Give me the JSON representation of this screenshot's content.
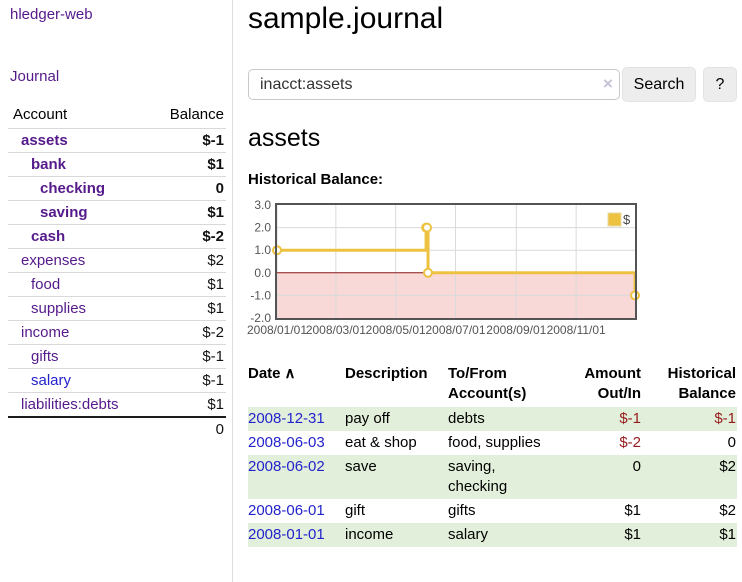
{
  "sidebar": {
    "app_title": "hledger-web",
    "journal_link": "Journal",
    "accounts_table": {
      "headers": {
        "account": "Account",
        "balance": "Balance"
      },
      "rows": [
        {
          "name": "assets",
          "balance": "$-1"
        },
        {
          "name": "bank",
          "balance": "$1"
        },
        {
          "name": "checking",
          "balance": "0"
        },
        {
          "name": "saving",
          "balance": "$1"
        },
        {
          "name": "cash",
          "balance": "$-2"
        },
        {
          "name": "expenses",
          "balance": "$2"
        },
        {
          "name": "food",
          "balance": "$1"
        },
        {
          "name": "supplies",
          "balance": "$1"
        },
        {
          "name": "income",
          "balance": "$-2"
        },
        {
          "name": "gifts",
          "balance": "$-1"
        },
        {
          "name": "salary",
          "balance": "$-1"
        },
        {
          "name": "liabilities:debts",
          "balance": "$1"
        }
      ],
      "total": "0"
    }
  },
  "header": {
    "title": "sample.journal"
  },
  "search": {
    "value": "inacct:assets",
    "clear_icon": "×",
    "button_label": "Search",
    "help_label": "?"
  },
  "main": {
    "account_heading": "assets",
    "chart_label": "Historical Balance:"
  },
  "chart_data": {
    "type": "step-line",
    "title": "Historical Balance",
    "series": [
      {
        "name": "$",
        "x": [
          "2008-01-01",
          "2008-06-01",
          "2008-06-02",
          "2008-06-03",
          "2008-12-31"
        ],
        "values": [
          1,
          2,
          2,
          0,
          -1
        ]
      }
    ],
    "x_range": [
      "2008-01-01",
      "2008-12-31"
    ],
    "ylim": [
      -2,
      3
    ],
    "x_ticks": [
      {
        "date": "2008-01-01",
        "label": "2008/01/01"
      },
      {
        "date": "2008-03-01",
        "label": "2008/03/01"
      },
      {
        "date": "2008-05-01",
        "label": "2008/05/01"
      },
      {
        "date": "2008-07-01",
        "label": "2008/07/01"
      },
      {
        "date": "2008-09-01",
        "label": "2008/09/01"
      },
      {
        "date": "2008-11-01",
        "label": "2008/11/01"
      }
    ],
    "y_ticks": [
      "3.0",
      "2.0",
      "1.0",
      "0.0",
      "-1.0",
      "-2.0"
    ],
    "legend": {
      "label": "$",
      "position": "top-right"
    },
    "grid": true,
    "colors": {
      "line": "#edc240",
      "marker_fill": "#ffffff",
      "negative_fill": "#f9d8d8",
      "zero_line": "#8c1717",
      "grid": "#dadada",
      "border": "#545454",
      "tick_text": "#545454"
    }
  },
  "register_table": {
    "columns": [
      {
        "label": "Date",
        "sort_icon": "∧"
      },
      {
        "label": "Description"
      },
      {
        "label": "To/From Account(s)"
      },
      {
        "label": "Amount Out/In"
      },
      {
        "label": "Historical Balance"
      }
    ],
    "rows": [
      {
        "date": "2008-12-31",
        "description": "pay off",
        "accounts": "debts",
        "amount": "$-1",
        "balance": "$-1"
      },
      {
        "date": "2008-06-03",
        "description": "eat & shop",
        "accounts": "food, supplies",
        "amount": "$-2",
        "balance": "0"
      },
      {
        "date": "2008-06-02",
        "description": "save",
        "accounts": "saving, checking",
        "amount": "0",
        "balance": "$2"
      },
      {
        "date": "2008-06-01",
        "description": "gift",
        "accounts": "gifts",
        "amount": "$1",
        "balance": "$2"
      },
      {
        "date": "2008-01-01",
        "description": "income",
        "accounts": "salary",
        "amount": "$1",
        "balance": "$1"
      }
    ]
  }
}
